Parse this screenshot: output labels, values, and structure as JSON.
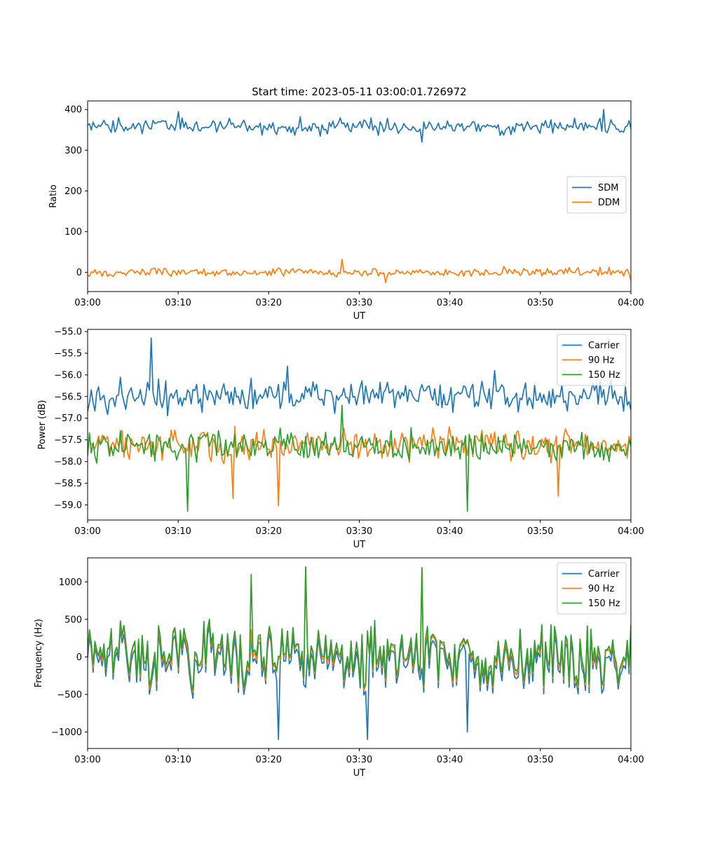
{
  "figure_title": "Start time: 2023-05-11 03:00:01.726972",
  "colors": {
    "blue": "#1f77b4",
    "orange": "#ff7f0e",
    "green": "#2ca02c"
  },
  "chart_data": [
    {
      "type": "line",
      "title": "Start time: 2023-05-11 03:00:01.726972",
      "xlabel": "UT",
      "ylabel": "Ratio",
      "xlim": [
        "03:00",
        "04:00"
      ],
      "ylim": [
        -47,
        421
      ],
      "xticks": [
        "03:00",
        "03:10",
        "03:20",
        "03:30",
        "03:40",
        "03:50",
        "04:00"
      ],
      "yticks": [
        0,
        100,
        200,
        300,
        400
      ],
      "ytick_labels": [
        "0",
        "100",
        "200",
        "300",
        "400"
      ],
      "grid": false,
      "legend": "center-right",
      "series": [
        {
          "name": "SDM",
          "color": "#1f77b4",
          "center": 358,
          "amplitude": 16,
          "spikes": [
            [
              "03:10",
              395
            ],
            [
              "03:57",
              400
            ],
            [
              "03:37",
              320
            ]
          ]
        },
        {
          "name": "DDM",
          "color": "#ff7f0e",
          "center": 0,
          "amplitude": 9,
          "spikes": [
            [
              "03:28",
              32
            ],
            [
              "03:33",
              -25
            ],
            [
              "04:00",
              -20
            ]
          ]
        }
      ]
    },
    {
      "type": "line",
      "title": "",
      "xlabel": "UT",
      "ylabel": "Power (dB)",
      "xlim": [
        "03:00",
        "04:00"
      ],
      "ylim": [
        -59.35,
        -54.95
      ],
      "xticks": [
        "03:00",
        "03:10",
        "03:20",
        "03:30",
        "03:40",
        "03:50",
        "04:00"
      ],
      "yticks": [
        -55.0,
        -55.5,
        -56.0,
        -56.5,
        -57.0,
        -57.5,
        -58.0,
        -58.5,
        -59.0
      ],
      "ytick_labels": [
        "−55.0",
        "−55.5",
        "−56.0",
        "−56.5",
        "−57.0",
        "−57.5",
        "−58.0",
        "−58.5",
        "−59.0"
      ],
      "grid": false,
      "legend": "top-right",
      "series": [
        {
          "name": "Carrier",
          "color": "#1f77b4",
          "center": -56.5,
          "amplitude": 0.3,
          "spikes": [
            [
              "03:07",
              -55.15
            ],
            [
              "03:22",
              -55.8
            ],
            [
              "03:45",
              -55.9
            ]
          ]
        },
        {
          "name": "90 Hz",
          "color": "#ff7f0e",
          "center": -57.6,
          "amplitude": 0.3,
          "spikes": [
            [
              "03:21",
              -59.02
            ],
            [
              "03:16",
              -58.85
            ],
            [
              "03:52",
              -58.8
            ]
          ]
        },
        {
          "name": "150 Hz",
          "color": "#2ca02c",
          "center": -57.65,
          "amplitude": 0.3,
          "spikes": [
            [
              "03:11",
              -59.15
            ],
            [
              "03:42",
              -59.15
            ],
            [
              "03:28",
              -56.7
            ]
          ]
        }
      ]
    },
    {
      "type": "line",
      "title": "",
      "xlabel": "UT",
      "ylabel": "Frequency (Hz)",
      "xlim": [
        "03:00",
        "04:00"
      ],
      "ylim": [
        -1220,
        1320
      ],
      "xticks": [
        "03:00",
        "03:10",
        "03:20",
        "03:30",
        "03:40",
        "03:50",
        "04:00"
      ],
      "yticks": [
        -1000,
        -500,
        0,
        500,
        1000
      ],
      "ytick_labels": [
        "−1000",
        "−500",
        "0",
        "500",
        "1000"
      ],
      "grid": false,
      "legend": "top-right",
      "series": [
        {
          "name": "Carrier",
          "color": "#1f77b4",
          "center": -60,
          "amplitude": 330,
          "spikes": [
            [
              "03:21",
              -1100
            ],
            [
              "03:31",
              -1100
            ],
            [
              "03:42",
              -1000
            ]
          ]
        },
        {
          "name": "90 Hz",
          "color": "#ff7f0e",
          "center": 10,
          "amplitude": 330,
          "spikes": [
            [
              "03:24",
              1200
            ],
            [
              "03:37",
              1180
            ]
          ]
        },
        {
          "name": "150 Hz",
          "color": "#2ca02c",
          "center": 40,
          "amplitude": 330,
          "spikes": [
            [
              "03:24",
              1200
            ],
            [
              "03:37",
              1190
            ],
            [
              "03:18",
              1100
            ]
          ]
        }
      ]
    }
  ]
}
